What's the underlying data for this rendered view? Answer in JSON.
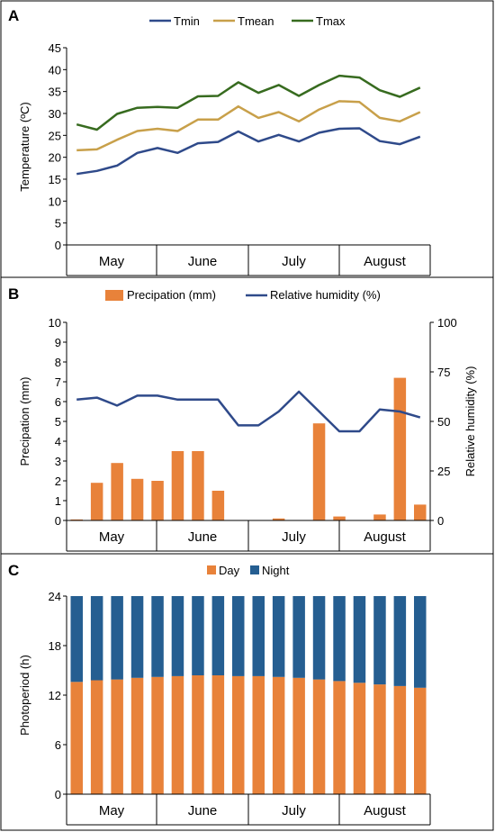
{
  "colors": {
    "tmin": "#2F4A8A",
    "tmean": "#C8A04A",
    "tmax": "#376B1F",
    "precip": "#E8823A",
    "rh": "#2F4A8A",
    "day": "#E8823A",
    "night": "#255E91",
    "axis": "#000000",
    "border": "#000000"
  },
  "chart_data": [
    {
      "type": "line",
      "panel_label": "A",
      "ylabel": "Temperature (ºC)",
      "ylim": [
        0,
        45
      ],
      "yticks": [
        "0",
        "5",
        "10",
        "15",
        "20",
        "25",
        "30",
        "35",
        "40",
        "45"
      ],
      "months": [
        "May",
        "June",
        "July",
        "August"
      ],
      "x_points": 18,
      "legend_position": "top-center",
      "series": [
        {
          "name": "Tmin",
          "values": [
            16.2,
            16.9,
            18.1,
            21.0,
            22.1,
            21.0,
            23.2,
            23.5,
            25.9,
            23.6,
            25.1,
            23.6,
            25.6,
            26.5,
            26.6,
            23.7,
            23.0,
            24.7
          ]
        },
        {
          "name": "Tmean",
          "values": [
            21.6,
            21.8,
            24.0,
            26.0,
            26.5,
            26.0,
            28.6,
            28.6,
            31.6,
            29.0,
            30.3,
            28.2,
            30.9,
            32.8,
            32.6,
            29.0,
            28.2,
            30.3
          ]
        },
        {
          "name": "Tmax",
          "values": [
            27.5,
            26.3,
            29.9,
            31.3,
            31.5,
            31.3,
            33.9,
            34.0,
            37.1,
            34.7,
            36.5,
            34.0,
            36.5,
            38.6,
            38.2,
            35.3,
            33.8,
            35.9
          ]
        }
      ]
    },
    {
      "type": "bar",
      "panel_label": "B",
      "ylabel": "Precipation (mm)",
      "y2label": "Relative humidity (%)",
      "ylim": [
        0,
        10
      ],
      "y2lim": [
        0,
        100
      ],
      "yticks": [
        "0",
        "1",
        "2",
        "3",
        "4",
        "5",
        "6",
        "7",
        "8",
        "9",
        "10"
      ],
      "y2ticks": [
        "0",
        "25",
        "50",
        "75",
        "100"
      ],
      "months": [
        "May",
        "June",
        "July",
        "August"
      ],
      "x_points": 18,
      "legend_position": "top-center",
      "series": [
        {
          "name": "Precipation (mm)",
          "type": "bar",
          "values": [
            0.05,
            1.9,
            2.9,
            2.1,
            2.0,
            3.5,
            3.5,
            1.5,
            0,
            0,
            0.1,
            0,
            4.9,
            0.2,
            0,
            0.3,
            7.2,
            0.8
          ]
        },
        {
          "name": "Relative humidity (%)",
          "type": "line",
          "axis": "right",
          "values": [
            61,
            62,
            58,
            63,
            63,
            61,
            61,
            61,
            48,
            48,
            55,
            65,
            55,
            45,
            45,
            56,
            55,
            52
          ]
        }
      ]
    },
    {
      "type": "bar",
      "stacked": true,
      "panel_label": "C",
      "ylabel": "Photoperiod (h)",
      "ylim": [
        0,
        24
      ],
      "yticks": [
        "0",
        "6",
        "12",
        "18",
        "24"
      ],
      "months": [
        "May",
        "June",
        "July",
        "August"
      ],
      "legend_position": "top-center",
      "series": [
        {
          "name": "Day",
          "values": [
            13.6,
            13.8,
            13.9,
            14.1,
            14.2,
            14.3,
            14.4,
            14.4,
            14.3,
            14.3,
            14.2,
            14.1,
            13.9,
            13.7,
            13.5,
            13.3,
            13.1,
            12.9
          ]
        },
        {
          "name": "Night",
          "values": [
            10.4,
            10.2,
            10.1,
            9.9,
            9.8,
            9.7,
            9.6,
            9.6,
            9.7,
            9.7,
            9.8,
            9.9,
            10.1,
            10.3,
            10.5,
            10.7,
            10.9,
            11.1
          ]
        }
      ]
    }
  ]
}
